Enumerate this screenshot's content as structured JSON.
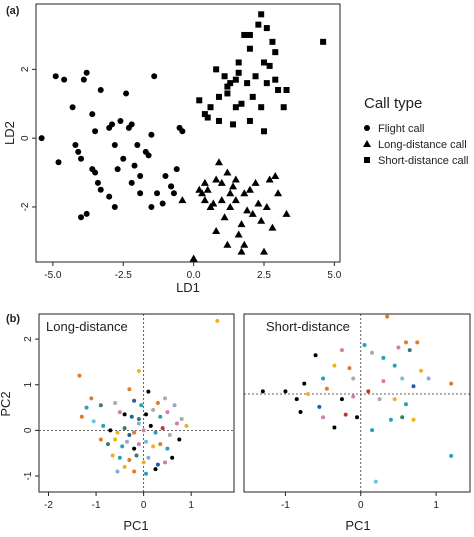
{
  "panel_labels": {
    "a": "(a)",
    "b": "(b)"
  },
  "legend": {
    "title": "Call type",
    "entries": [
      {
        "label": "Flight call",
        "shape": "circle"
      },
      {
        "label": "Long-distance call",
        "shape": "triangle"
      },
      {
        "label": "Short-distance call",
        "shape": "square"
      }
    ]
  },
  "colors": {
    "points": [
      "#000000",
      "#e07b2a",
      "#2a9fb8",
      "#3a7a6a",
      "#d37bb3",
      "#f2b021",
      "#88aadd",
      "#aaaaaa",
      "#1f5fa8",
      "#c0392b",
      "#6fc3d8"
    ],
    "axis": "#222222"
  },
  "chart_data": [
    {
      "type": "scatter",
      "title": "",
      "xlabel": "LD1",
      "ylabel": "LD2",
      "xlim": [
        -5.6,
        5.2
      ],
      "ylim": [
        -3.6,
        3.9
      ],
      "xticks": [
        "-5.0",
        "-2.5",
        "0.0",
        "2.5",
        "5.0"
      ],
      "xtick_values": [
        -5,
        -2.5,
        0,
        2.5,
        5
      ],
      "yticks": [
        "-2",
        "0",
        "2"
      ],
      "ytick_values": [
        -2,
        0,
        2
      ],
      "grid": false,
      "legend": "right",
      "series": [
        {
          "name": "Flight call",
          "marker": "circle",
          "points": [
            [
              -5.4,
              0.0
            ],
            [
              -4.9,
              1.8
            ],
            [
              -4.6,
              1.7
            ],
            [
              -4.3,
              0.9
            ],
            [
              -4.2,
              -0.2
            ],
            [
              -4.1,
              -0.4
            ],
            [
              -4.0,
              -0.6
            ],
            [
              -3.9,
              1.7
            ],
            [
              -3.8,
              1.9
            ],
            [
              -3.6,
              0.7
            ],
            [
              -3.5,
              0.2
            ],
            [
              -3.5,
              -1.0
            ],
            [
              -3.4,
              -1.3
            ],
            [
              -3.3,
              1.4
            ],
            [
              -3.0,
              0.3
            ],
            [
              -2.9,
              0.4
            ],
            [
              -2.8,
              -0.2
            ],
            [
              -2.6,
              0.5
            ],
            [
              -2.5,
              -0.6
            ],
            [
              -2.4,
              1.3
            ],
            [
              -2.3,
              0.3
            ],
            [
              -2.2,
              0.4
            ],
            [
              -2.0,
              -0.2
            ],
            [
              -1.9,
              -1.1
            ],
            [
              -1.9,
              -1.6
            ],
            [
              -1.7,
              -0.4
            ],
            [
              -1.5,
              0.1
            ],
            [
              -1.5,
              -2.0
            ],
            [
              -1.3,
              -1.6
            ],
            [
              -1.1,
              -1.9
            ],
            [
              -0.8,
              -1.4
            ],
            [
              -2.8,
              -2.0
            ],
            [
              -3.0,
              -1.7
            ],
            [
              -3.8,
              -2.2
            ],
            [
              -4.0,
              -2.3
            ],
            [
              -3.6,
              -0.9
            ],
            [
              -4.8,
              -0.7
            ],
            [
              -2.1,
              -0.8
            ],
            [
              -1.4,
              1.8
            ],
            [
              -0.8,
              -1.4
            ],
            [
              -0.7,
              -1.6
            ],
            [
              -1.0,
              -1.1
            ],
            [
              -0.6,
              -0.9
            ],
            [
              -0.5,
              0.3
            ],
            [
              -0.4,
              0.2
            ],
            [
              -2.7,
              -0.9
            ],
            [
              -3.3,
              -1.5
            ],
            [
              -2.2,
              -1.3
            ],
            [
              -1.6,
              -0.5
            ]
          ]
        },
        {
          "name": "Long-distance call",
          "marker": "triangle",
          "points": [
            [
              -0.4,
              -1.8
            ],
            [
              0.0,
              -3.5
            ],
            [
              0.2,
              -1.5
            ],
            [
              0.3,
              -1.6
            ],
            [
              0.4,
              -1.8
            ],
            [
              0.5,
              -1.5
            ],
            [
              0.6,
              -2.0
            ],
            [
              0.7,
              -1.9
            ],
            [
              0.8,
              -1.2
            ],
            [
              0.9,
              -0.7
            ],
            [
              1.0,
              -1.3
            ],
            [
              1.0,
              -1.8
            ],
            [
              1.1,
              -2.3
            ],
            [
              1.2,
              -1.0
            ],
            [
              1.3,
              -1.6
            ],
            [
              1.3,
              -2.0
            ],
            [
              1.4,
              -1.4
            ],
            [
              1.5,
              -1.2
            ],
            [
              1.5,
              -1.8
            ],
            [
              1.6,
              -2.8
            ],
            [
              1.7,
              -3.3
            ],
            [
              1.8,
              -3.1
            ],
            [
              1.8,
              -1.6
            ],
            [
              1.9,
              -2.1
            ],
            [
              2.0,
              -1.5
            ],
            [
              2.1,
              -2.2
            ],
            [
              2.2,
              -1.3
            ],
            [
              2.3,
              -1.9
            ],
            [
              2.4,
              -2.4
            ],
            [
              2.5,
              -3.3
            ],
            [
              2.6,
              -2.0
            ],
            [
              2.7,
              -1.2
            ],
            [
              2.8,
              -2.6
            ],
            [
              3.0,
              -1.6
            ],
            [
              3.3,
              -2.2
            ],
            [
              0.8,
              -2.7
            ],
            [
              1.2,
              -3.1
            ],
            [
              2.9,
              -1.1
            ],
            [
              1.7,
              -2.5
            ],
            [
              0.4,
              -1.3
            ]
          ]
        },
        {
          "name": "Short-distance call",
          "marker": "square",
          "points": [
            [
              0.2,
              1.1
            ],
            [
              0.4,
              0.7
            ],
            [
              0.5,
              0.6
            ],
            [
              0.6,
              0.9
            ],
            [
              0.8,
              2.0
            ],
            [
              0.9,
              0.5
            ],
            [
              1.1,
              1.8
            ],
            [
              1.2,
              1.3
            ],
            [
              1.3,
              1.6
            ],
            [
              1.4,
              0.4
            ],
            [
              1.5,
              1.7
            ],
            [
              1.6,
              2.2
            ],
            [
              1.6,
              1.9
            ],
            [
              1.7,
              1.0
            ],
            [
              1.8,
              3.0
            ],
            [
              1.9,
              1.6
            ],
            [
              2.0,
              2.6
            ],
            [
              2.0,
              0.5
            ],
            [
              2.1,
              1.2
            ],
            [
              2.2,
              1.8
            ],
            [
              2.3,
              3.3
            ],
            [
              2.4,
              3.6
            ],
            [
              2.5,
              2.2
            ],
            [
              2.5,
              0.2
            ],
            [
              2.6,
              1.6
            ],
            [
              2.7,
              2.1
            ],
            [
              2.8,
              2.8
            ],
            [
              2.9,
              1.7
            ],
            [
              3.0,
              1.4
            ],
            [
              3.2,
              0.9
            ],
            [
              3.3,
              1.4
            ],
            [
              4.6,
              2.8
            ],
            [
              2.0,
              3.0
            ],
            [
              2.6,
              3.2
            ],
            [
              1.5,
              0.9
            ],
            [
              0.9,
              1.2
            ],
            [
              2.4,
              0.9
            ],
            [
              2.9,
              2.5
            ],
            [
              1.2,
              1.5
            ]
          ]
        }
      ]
    },
    {
      "type": "scatter",
      "title": "Long-distance",
      "xlabel": "PC1",
      "ylabel": "PC2",
      "xlim": [
        -2.2,
        1.9
      ],
      "ylim": [
        -1.35,
        2.55
      ],
      "xticks": [
        "-2",
        "-1",
        "0",
        "1"
      ],
      "xtick_values": [
        -2,
        -1,
        0,
        1
      ],
      "yticks": [
        "-1",
        "0",
        "1",
        "2"
      ],
      "ytick_values": [
        -1,
        0,
        1,
        2
      ],
      "reference_lines": {
        "x": 0,
        "y": 0
      },
      "grid": false,
      "points": [
        [
          1.55,
          2.4,
          5
        ],
        [
          -1.35,
          1.2,
          1
        ],
        [
          -0.1,
          1.3,
          5
        ],
        [
          -0.3,
          0.9,
          1
        ],
        [
          0.1,
          0.85,
          0
        ],
        [
          -1.1,
          0.7,
          1
        ],
        [
          -1.2,
          0.5,
          2
        ],
        [
          -0.9,
          0.55,
          3
        ],
        [
          -0.6,
          0.6,
          7
        ],
        [
          -0.5,
          0.4,
          4
        ],
        [
          -0.4,
          0.35,
          0
        ],
        [
          -0.25,
          0.3,
          8
        ],
        [
          -0.1,
          0.25,
          3
        ],
        [
          0.05,
          0.35,
          0
        ],
        [
          0.2,
          0.45,
          7
        ],
        [
          0.35,
          0.3,
          2
        ],
        [
          0.5,
          0.4,
          4
        ],
        [
          0.65,
          0.55,
          6
        ],
        [
          0.8,
          0.25,
          7
        ],
        [
          0.9,
          0.1,
          5
        ],
        [
          -1.3,
          0.3,
          1
        ],
        [
          -1.05,
          0.2,
          10
        ],
        [
          -0.85,
          0.1,
          2
        ],
        [
          -0.7,
          0.0,
          0
        ],
        [
          -0.55,
          -0.05,
          5
        ],
        [
          -0.4,
          0.05,
          3
        ],
        [
          -0.3,
          -0.1,
          8
        ],
        [
          -0.2,
          -0.05,
          1
        ],
        [
          -0.1,
          0.15,
          6
        ],
        [
          0.0,
          0.0,
          4
        ],
        [
          0.15,
          0.1,
          0
        ],
        [
          0.25,
          -0.05,
          2
        ],
        [
          0.4,
          0.05,
          9
        ],
        [
          0.55,
          -0.1,
          7
        ],
        [
          0.7,
          0.15,
          4
        ],
        [
          -0.9,
          -0.2,
          1
        ],
        [
          -0.75,
          -0.3,
          3
        ],
        [
          -0.6,
          -0.2,
          5
        ],
        [
          -0.45,
          -0.35,
          2
        ],
        [
          -0.35,
          -0.25,
          6
        ],
        [
          -0.2,
          -0.4,
          0
        ],
        [
          -0.1,
          -0.3,
          4
        ],
        [
          0.05,
          -0.25,
          10
        ],
        [
          0.2,
          -0.35,
          5
        ],
        [
          0.35,
          -0.3,
          1
        ],
        [
          0.5,
          -0.4,
          2
        ],
        [
          0.6,
          -0.6,
          0
        ],
        [
          -0.65,
          -0.55,
          5
        ],
        [
          -0.5,
          -0.6,
          2
        ],
        [
          -0.3,
          -0.65,
          1
        ],
        [
          -0.15,
          -0.55,
          3
        ],
        [
          0.0,
          -0.7,
          5
        ],
        [
          0.1,
          -0.6,
          6
        ],
        [
          0.3,
          -0.75,
          8
        ],
        [
          0.45,
          -0.7,
          4
        ],
        [
          -0.4,
          -0.8,
          5
        ],
        [
          -0.2,
          -0.9,
          1
        ],
        [
          0.05,
          -0.95,
          2
        ],
        [
          0.25,
          -0.85,
          0
        ],
        [
          -0.55,
          -0.9,
          6
        ],
        [
          0.45,
          0.7,
          7
        ],
        [
          0.3,
          0.6,
          1
        ],
        [
          -0.05,
          0.55,
          2
        ],
        [
          -0.2,
          0.65,
          8
        ],
        [
          0.75,
          -0.2,
          0
        ]
      ]
    },
    {
      "type": "scatter",
      "title": "Short-distance",
      "xlabel": "PC1",
      "ylabel": "",
      "xlim": [
        -1.55,
        1.45
      ],
      "ylim": [
        -1.9,
        1.55
      ],
      "xticks": [
        "-1",
        "0",
        "1"
      ],
      "xtick_values": [
        -1,
        0,
        1
      ],
      "yticks": [],
      "ytick_values": [],
      "reference_lines": {
        "x": 0,
        "y": 0
      },
      "grid": false,
      "points": [
        [
          0.35,
          1.5,
          1
        ],
        [
          0.6,
          1.0,
          1
        ],
        [
          0.75,
          1.0,
          1
        ],
        [
          0.65,
          0.85,
          3
        ],
        [
          0.5,
          0.9,
          4
        ],
        [
          0.3,
          0.7,
          2
        ],
        [
          0.15,
          0.8,
          7
        ],
        [
          -0.25,
          0.85,
          4
        ],
        [
          -0.6,
          0.75,
          0
        ],
        [
          -0.35,
          0.55,
          5
        ],
        [
          0.45,
          0.55,
          2
        ],
        [
          0.8,
          0.45,
          5
        ],
        [
          1.2,
          0.2,
          1
        ],
        [
          0.55,
          0.3,
          10
        ],
        [
          0.3,
          0.25,
          4
        ],
        [
          -0.1,
          0.3,
          7
        ],
        [
          -0.5,
          0.3,
          2
        ],
        [
          -0.75,
          0.2,
          0
        ],
        [
          -1.3,
          0.05,
          0
        ],
        [
          -1.0,
          0.05,
          0
        ],
        [
          -0.85,
          -0.1,
          0
        ],
        [
          -0.7,
          0.0,
          5
        ],
        [
          -0.45,
          0.1,
          1
        ],
        [
          -0.25,
          -0.1,
          0
        ],
        [
          -0.1,
          -0.05,
          4
        ],
        [
          0.1,
          0.05,
          9
        ],
        [
          0.25,
          -0.1,
          7
        ],
        [
          0.45,
          -0.1,
          5
        ],
        [
          0.6,
          -0.2,
          2
        ],
        [
          -0.8,
          -0.35,
          0
        ],
        [
          -0.55,
          -0.25,
          8
        ],
        [
          -0.2,
          -0.4,
          9
        ],
        [
          -0.05,
          -0.45,
          0
        ],
        [
          -0.35,
          -0.65,
          0
        ],
        [
          0.4,
          -0.5,
          2
        ],
        [
          0.55,
          -0.45,
          3
        ],
        [
          0.7,
          -0.5,
          5
        ],
        [
          0.15,
          -0.7,
          2
        ],
        [
          1.2,
          -1.2,
          2
        ],
        [
          0.2,
          -1.7,
          10
        ],
        [
          0.9,
          0.3,
          6
        ],
        [
          -0.15,
          0.5,
          1
        ],
        [
          0.05,
          0.95,
          2
        ],
        [
          0.7,
          0.15,
          8
        ],
        [
          -0.5,
          -0.45,
          4
        ]
      ]
    }
  ]
}
